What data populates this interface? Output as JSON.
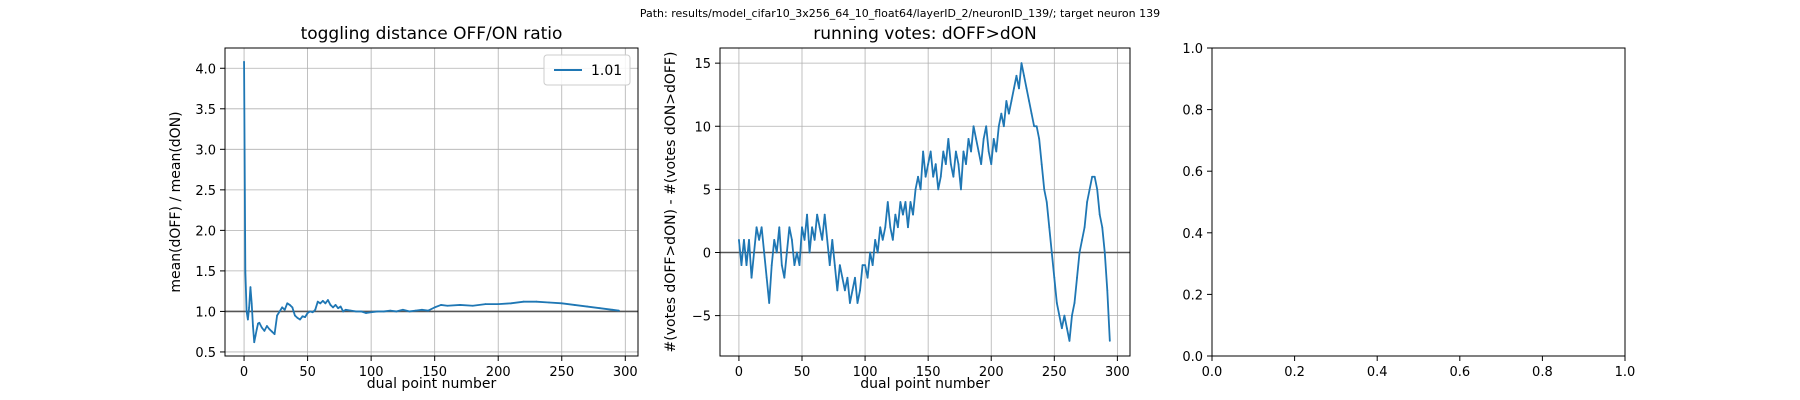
{
  "figure": {
    "suptitle": "Path: results/model_cifar10_3x256_64_10_float64/layerID_2/neuronID_139/; target neuron 139"
  },
  "chart_data": [
    {
      "type": "line",
      "title": "toggling distance OFF/ON ratio",
      "xlabel": "dual point number",
      "ylabel": "mean(dOFF) / mean(dON)",
      "xlim": [
        -15,
        310
      ],
      "ylim": [
        0.45,
        4.25
      ],
      "xticks": [
        0,
        50,
        100,
        150,
        200,
        250,
        300
      ],
      "yticks": [
        0.5,
        1.0,
        1.5,
        2.0,
        2.5,
        3.0,
        3.5,
        4.0
      ],
      "xtick_labels": [
        "0",
        "50",
        "100",
        "150",
        "200",
        "250",
        "300"
      ],
      "ytick_labels": [
        "0.5",
        "1.0",
        "1.5",
        "2.0",
        "2.5",
        "3.0",
        "3.5",
        "4.0"
      ],
      "grid": true,
      "hline": 1.0,
      "legend": {
        "position": "top-right",
        "entries": [
          "1.01"
        ]
      },
      "series": [
        {
          "name": "1.01",
          "color": "#1f77b4",
          "x": [
            0,
            1,
            2,
            3,
            4,
            5,
            6,
            7,
            8,
            9,
            10,
            11,
            12,
            14,
            16,
            18,
            20,
            22,
            24,
            26,
            28,
            30,
            32,
            34,
            36,
            38,
            40,
            42,
            44,
            46,
            48,
            50,
            52,
            54,
            56,
            58,
            60,
            62,
            64,
            66,
            68,
            70,
            72,
            74,
            76,
            78,
            80,
            84,
            88,
            92,
            96,
            100,
            105,
            110,
            115,
            120,
            125,
            130,
            135,
            140,
            145,
            150,
            155,
            160,
            170,
            180,
            190,
            200,
            210,
            220,
            230,
            240,
            250,
            260,
            270,
            280,
            290,
            295
          ],
          "values": [
            4.08,
            1.5,
            1.0,
            0.9,
            1.05,
            1.3,
            1.1,
            0.82,
            0.62,
            0.7,
            0.78,
            0.85,
            0.86,
            0.8,
            0.76,
            0.82,
            0.78,
            0.75,
            0.72,
            0.95,
            1.0,
            1.05,
            1.02,
            1.1,
            1.08,
            1.05,
            0.95,
            0.92,
            0.9,
            0.94,
            0.93,
            0.98,
            1.0,
            0.99,
            1.02,
            1.12,
            1.1,
            1.13,
            1.1,
            1.14,
            1.08,
            1.05,
            1.08,
            1.04,
            1.06,
            1.0,
            1.02,
            1.01,
            1.0,
            1.0,
            0.98,
            0.99,
            1.0,
            1.0,
            1.01,
            1.0,
            1.02,
            1.0,
            1.01,
            1.02,
            1.01,
            1.05,
            1.08,
            1.07,
            1.08,
            1.07,
            1.09,
            1.09,
            1.1,
            1.12,
            1.12,
            1.11,
            1.1,
            1.08,
            1.06,
            1.04,
            1.02,
            1.01
          ]
        }
      ]
    },
    {
      "type": "line",
      "title": "running votes: dOFF>dON",
      "xlabel": "dual point number",
      "ylabel": "#(votes dOFF>dON) - #(votes dON>dOFF)",
      "xlim": [
        -15,
        310
      ],
      "ylim": [
        -8.2,
        16.2
      ],
      "xticks": [
        0,
        50,
        100,
        150,
        200,
        250,
        300
      ],
      "yticks": [
        -5,
        0,
        5,
        10,
        15
      ],
      "xtick_labels": [
        "0",
        "50",
        "100",
        "150",
        "200",
        "250",
        "300"
      ],
      "ytick_labels": [
        "−5",
        "0",
        "5",
        "10",
        "15"
      ],
      "grid": true,
      "hline": 0,
      "series": [
        {
          "color": "#1f77b4",
          "x": [
            0,
            2,
            4,
            6,
            8,
            10,
            12,
            14,
            16,
            18,
            20,
            22,
            24,
            26,
            28,
            30,
            32,
            34,
            36,
            38,
            40,
            42,
            44,
            46,
            48,
            50,
            52,
            54,
            56,
            58,
            60,
            62,
            64,
            66,
            68,
            70,
            72,
            74,
            76,
            78,
            80,
            82,
            84,
            86,
            88,
            90,
            92,
            94,
            96,
            98,
            100,
            102,
            104,
            106,
            108,
            110,
            112,
            114,
            116,
            118,
            120,
            122,
            124,
            126,
            128,
            130,
            132,
            134,
            136,
            138,
            140,
            142,
            144,
            146,
            148,
            150,
            152,
            154,
            156,
            158,
            160,
            162,
            164,
            166,
            168,
            170,
            172,
            174,
            176,
            178,
            180,
            182,
            184,
            186,
            188,
            190,
            192,
            194,
            196,
            198,
            200,
            202,
            204,
            206,
            208,
            210,
            212,
            214,
            216,
            218,
            220,
            222,
            224,
            226,
            228,
            230,
            232,
            234,
            236,
            238,
            240,
            242,
            244,
            246,
            248,
            250,
            252,
            254,
            256,
            258,
            260,
            262,
            264,
            266,
            268,
            270,
            272,
            274,
            276,
            278,
            280,
            282,
            284,
            286,
            288,
            290,
            292,
            294
          ],
          "values": [
            1,
            -1,
            1,
            -1,
            1,
            -2,
            0,
            2,
            1,
            2,
            0,
            -2,
            -4,
            -1,
            1,
            0,
            2,
            -1,
            -2,
            0,
            2,
            1,
            -1,
            0,
            -1,
            2,
            1,
            3,
            0,
            2,
            1,
            3,
            2,
            1,
            3,
            1,
            -1,
            1,
            -1,
            -3,
            -1,
            -2,
            -3,
            -2,
            -4,
            -3,
            -2,
            -4,
            -3,
            -1,
            -1,
            -2,
            0,
            -1,
            1,
            0,
            2,
            1,
            2,
            4,
            2,
            1,
            3,
            2,
            4,
            3,
            4,
            2,
            4,
            3,
            5,
            6,
            5,
            8,
            6,
            7,
            8,
            6,
            7,
            5,
            6,
            8,
            7,
            9,
            7,
            6,
            8,
            7,
            5,
            8,
            7,
            9,
            8,
            10,
            9,
            8,
            7,
            9,
            10,
            8,
            7,
            9,
            8,
            10,
            11,
            10,
            12,
            11,
            12,
            13,
            14,
            13,
            15,
            14,
            13,
            12,
            11,
            10,
            10,
            9,
            7,
            5,
            4,
            2,
            0,
            -2,
            -4,
            -5,
            -6,
            -5,
            -6,
            -7,
            -5,
            -4,
            -2,
            0,
            1,
            2,
            4,
            5,
            6,
            6,
            5,
            3,
            2,
            0,
            -3,
            -7
          ]
        }
      ]
    },
    {
      "type": "line",
      "title": "",
      "xlabel": "",
      "ylabel": "",
      "xlim": [
        0,
        1
      ],
      "ylim": [
        0,
        1
      ],
      "xticks": [
        0,
        0.2,
        0.4,
        0.6,
        0.8,
        1.0
      ],
      "yticks": [
        0,
        0.2,
        0.4,
        0.6,
        0.8,
        1.0
      ],
      "xtick_labels": [
        "0.0",
        "0.2",
        "0.4",
        "0.6",
        "0.8",
        "1.0"
      ],
      "ytick_labels": [
        "0.0",
        "0.2",
        "0.4",
        "0.6",
        "0.8",
        "1.0"
      ],
      "grid": false,
      "series": []
    }
  ]
}
